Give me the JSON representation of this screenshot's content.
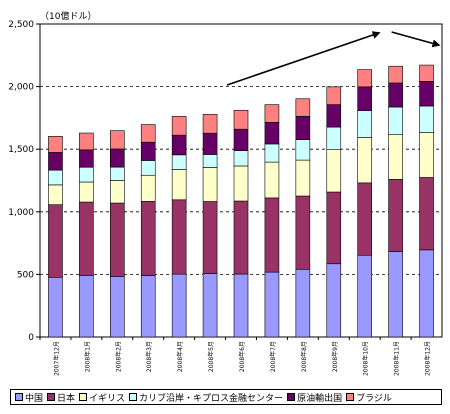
{
  "chart_data": {
    "type": "bar",
    "stacked": true,
    "unit_label": "（10億ドル）",
    "categories": [
      "2007年12月",
      "2008年1月",
      "2008年2月",
      "2008年3月",
      "2008年4月",
      "2008年5月",
      "2008年6月",
      "2008年7月",
      "2008年8月",
      "2008年9月",
      "2008年10月",
      "2008年11月",
      "2008年12月"
    ],
    "ylim": [
      0,
      2500
    ],
    "yticks": [
      0,
      500,
      1000,
      1500,
      2000,
      2500
    ],
    "ytick_labels": [
      "0",
      "500",
      "1,000",
      "1,500",
      "2,000",
      "2,500"
    ],
    "grid": true,
    "legend_position": "bottom",
    "series": [
      {
        "name": "中国",
        "color": "#9999ff",
        "values": [
          477,
          492,
          484,
          491,
          502,
          506,
          503,
          518,
          541,
          585,
          653,
          682,
          696
        ]
      },
      {
        "name": "日本",
        "color": "#993366",
        "values": [
          580,
          586,
          586,
          592,
          594,
          576,
          583,
          593,
          585,
          573,
          578,
          577,
          578
        ]
      },
      {
        "name": "イギリス",
        "color": "#ffffcc",
        "values": [
          158,
          160,
          181,
          209,
          243,
          272,
          280,
          286,
          287,
          338,
          362,
          357,
          361
        ]
      },
      {
        "name": "カリブ沿岸・キプロス金融センター",
        "color": "#ccffff",
        "values": [
          118,
          118,
          106,
          118,
          116,
          104,
          122,
          145,
          163,
          181,
          216,
          221,
          210
        ]
      },
      {
        "name": "原油輸出国",
        "color": "#660066",
        "values": [
          141,
          139,
          145,
          146,
          157,
          170,
          172,
          173,
          186,
          179,
          189,
          192,
          197
        ]
      },
      {
        "name": "ブラジル",
        "color": "#ff8080",
        "values": [
          129,
          134,
          146,
          141,
          150,
          150,
          151,
          141,
          141,
          142,
          138,
          134,
          130
        ]
      }
    ]
  }
}
